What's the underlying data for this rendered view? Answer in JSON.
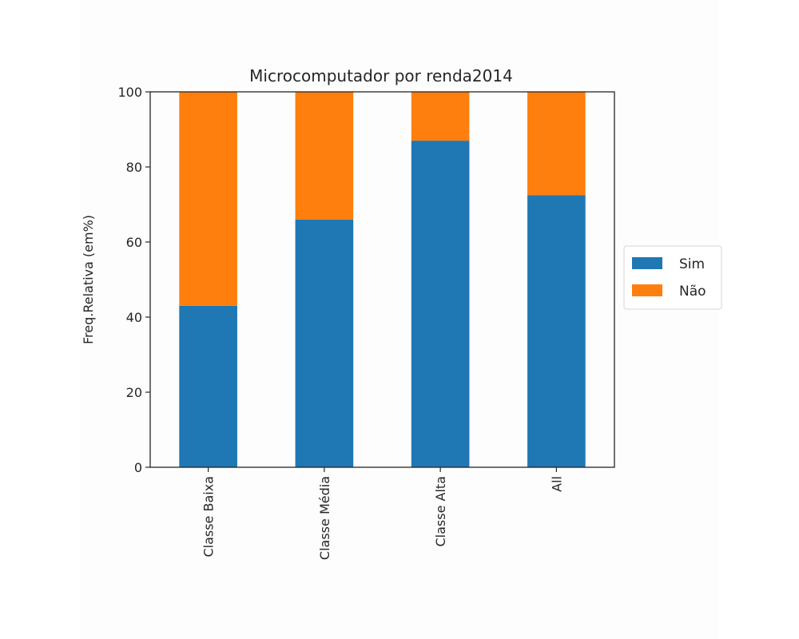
{
  "chart_data": {
    "type": "bar",
    "stacked": true,
    "title": "Microcomputador por renda2014",
    "xlabel": "",
    "ylabel": "Freq.Relativa (em%)",
    "categories": [
      "Classe Baixa",
      "Classe Média",
      "Classe Alta",
      "All"
    ],
    "series": [
      {
        "name": "Sim",
        "values": [
          43,
          66,
          87,
          72.5
        ],
        "color": "#1f77b4"
      },
      {
        "name": "Não",
        "values": [
          57,
          34,
          13,
          27.5
        ],
        "color": "#ff7f0e"
      }
    ],
    "ylim": [
      0,
      100
    ],
    "yticks": [
      0,
      20,
      40,
      60,
      80,
      100
    ],
    "grid": false,
    "legend_position": "right, outside plot"
  }
}
